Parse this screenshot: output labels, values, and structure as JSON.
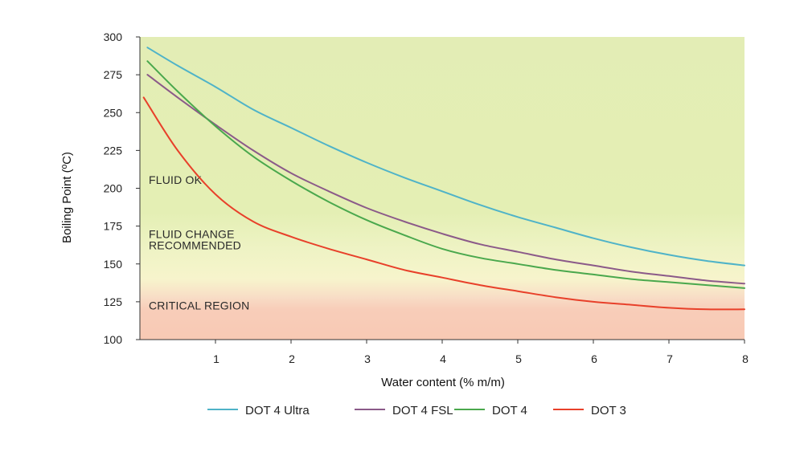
{
  "chart_data": {
    "type": "line",
    "xlabel": "Water content (% m/m)",
    "ylabel": "Boiling Point (ºC)",
    "xlim": [
      0,
      8
    ],
    "ylim": [
      100,
      300
    ],
    "x_ticks": [
      "1",
      "2",
      "3",
      "4",
      "5",
      "6",
      "7",
      "8"
    ],
    "y_ticks": [
      "100",
      "125",
      "150",
      "175",
      "200",
      "225",
      "250",
      "275",
      "300"
    ],
    "grid": false,
    "legend_position": "bottom",
    "regions": [
      {
        "label": "FLUID OK",
        "label_y": 203,
        "color": "#e3edb5"
      },
      {
        "label": "FLUID CHANGE\nRECOMMENDED",
        "label_y": 167,
        "color": "#f2f4c8"
      },
      {
        "label": "CRITICAL REGION",
        "label_y": 120,
        "color": "#f8cdb9"
      }
    ],
    "series": [
      {
        "name": "DOT 4 Ultra",
        "color": "#4fb3c8",
        "x": [
          0.1,
          0.5,
          1,
          1.5,
          2,
          2.5,
          3,
          3.5,
          4,
          4.5,
          5,
          5.5,
          6,
          6.5,
          7,
          7.5,
          8
        ],
        "y": [
          293,
          281,
          267,
          252,
          240,
          228,
          217,
          207,
          198,
          189,
          181,
          174,
          167,
          161,
          156,
          152,
          149
        ]
      },
      {
        "name": "DOT 4 FSL",
        "color": "#8b5a89",
        "x": [
          0.1,
          0.5,
          1,
          1.5,
          2,
          2.5,
          3,
          3.5,
          4,
          4.5,
          5,
          5.5,
          6,
          6.5,
          7,
          7.5,
          8
        ],
        "y": [
          275,
          260,
          242,
          225,
          210,
          198,
          187,
          178,
          170,
          163,
          158,
          153,
          149,
          145,
          142,
          139,
          137
        ]
      },
      {
        "name": "DOT 4",
        "color": "#4aa84d",
        "x": [
          0.1,
          0.5,
          1,
          1.5,
          2,
          2.5,
          3,
          3.5,
          4,
          4.5,
          5,
          5.5,
          6,
          6.5,
          7,
          7.5,
          8
        ],
        "y": [
          284,
          264,
          241,
          221,
          205,
          191,
          179,
          169,
          160,
          154,
          150,
          146,
          143,
          140,
          138,
          136,
          134
        ]
      },
      {
        "name": "DOT 3",
        "color": "#e8402a",
        "x": [
          0.05,
          0.5,
          1,
          1.5,
          2,
          2.5,
          3,
          3.5,
          4,
          4.5,
          5,
          5.5,
          6,
          6.5,
          7,
          7.5,
          8
        ],
        "y": [
          260,
          225,
          196,
          178,
          168,
          160,
          153,
          146,
          141,
          136,
          132,
          128,
          125,
          123,
          121,
          120,
          120
        ]
      }
    ]
  }
}
